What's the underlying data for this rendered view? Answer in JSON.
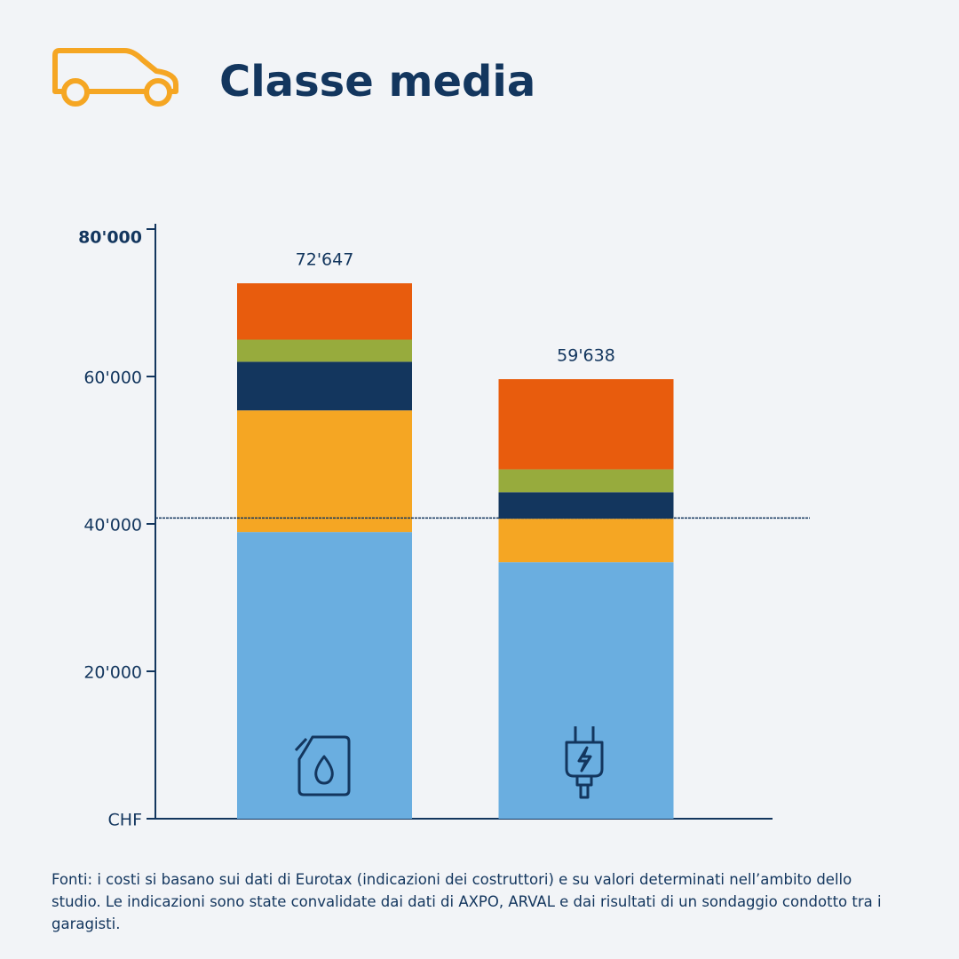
{
  "chart_data": {
    "type": "stacked-bar",
    "title": "Classe media",
    "categories": [
      null,
      null
    ],
    "series": [
      {
        "color": "#6aaee0",
        "values": [
          38900,
          34800
        ]
      },
      {
        "color": "#f5a623",
        "values": [
          16500,
          5900
        ]
      },
      {
        "color": "#13365e",
        "values": [
          6600,
          3600
        ]
      },
      {
        "color": "#97ab3d",
        "values": [
          3000,
          3100
        ]
      },
      {
        "color": "#e85c0d",
        "values": [
          7647,
          12238
        ]
      }
    ],
    "totals": [
      72647,
      59638
    ],
    "total_labels": [
      "72'647",
      "59'638"
    ],
    "reference_line": 40800,
    "ylim": [
      0,
      80000
    ],
    "yticks": [
      {
        "value": 0,
        "label": "CHF"
      },
      {
        "value": 20000,
        "label": "20'000"
      },
      {
        "value": 40000,
        "label": "40'000"
      },
      {
        "value": 60000,
        "label": "60'000"
      },
      {
        "value": 80000,
        "label": "80'000"
      }
    ],
    "footnote": "Fonti: i costi si basano sui dati di Eurotax (indicazioni dei costruttori) e su valori determinati nell’ambito dello studio. Le indicazioni sono state convalidate dai dati di AXPO, ARVAL e dai risultati di un sondaggio condotto tra i garagisti."
  }
}
